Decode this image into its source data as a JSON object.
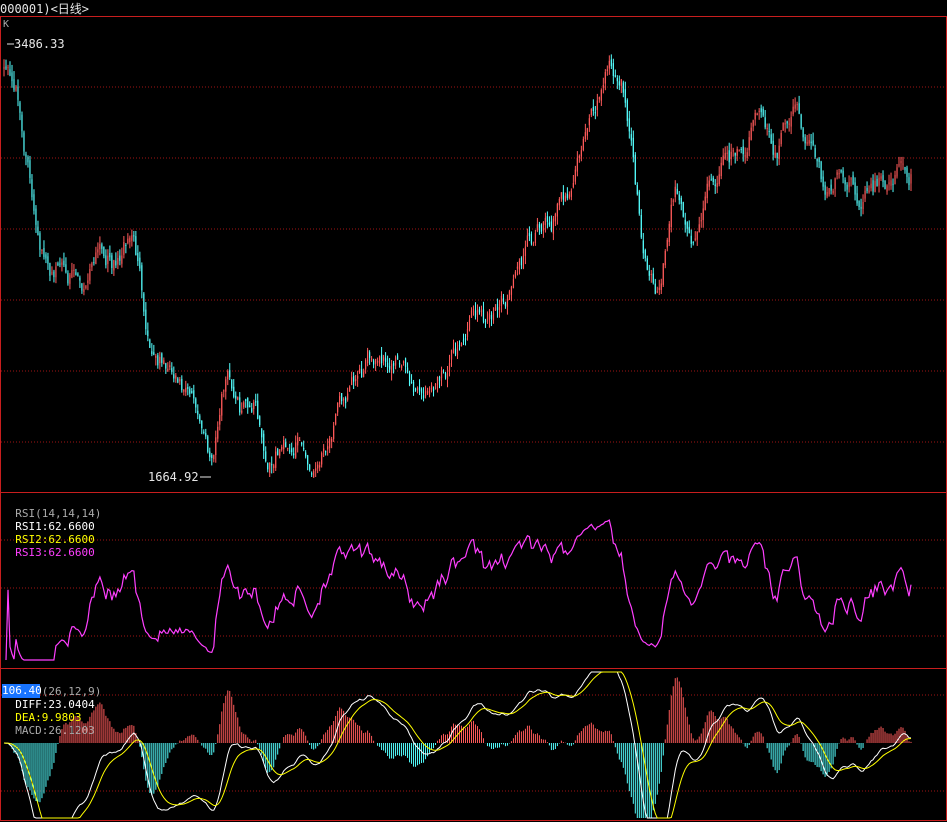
{
  "title": "000001)<日线>",
  "colors": {
    "up": "#ff5a5a",
    "down": "#54ffff",
    "frame": "#c81e1e",
    "grid": "#a01414",
    "rsi": "#ff3fff",
    "diff": "#ffffff",
    "dea": "#ffff00"
  },
  "kline": {
    "panel_label": "K",
    "high_label": "3486.33",
    "low_label": "1664.92",
    "high": 3486.33,
    "low": 1664.92
  },
  "rsi": {
    "params": "RSI(14,14,14)",
    "rsi1": "RSI1:62.6600",
    "rsi2": "RSI2:62.6600",
    "rsi3": "RSI3:62.6600"
  },
  "macd": {
    "params": "MACD(26,12,9)",
    "diff": "DIFF:23.0404",
    "dea": "DEA:9.9803",
    "macd": "MACD:26.1203",
    "scale_label": "106.40"
  },
  "chart_data": {
    "type": "candlestick",
    "series": [
      {
        "name": "K",
        "close": [
          3430,
          3330,
          2850,
          2520,
          2590,
          2420,
          2700,
          2560,
          2690,
          2250,
          2130,
          1980,
          1900,
          1750,
          2150,
          1960,
          2000,
          1750,
          1800,
          1830,
          1700,
          1870,
          1980,
          2060,
          2200,
          2150,
          2040,
          2030,
          2140,
          2250,
          2360,
          2310,
          2510,
          2640,
          2690,
          2800,
          3050,
          3200,
          3450,
          3300,
          2680,
          2480,
          2860,
          2640,
          2880,
          2980,
          3050,
          3200,
          3010,
          3200,
          3060,
          2850,
          2950,
          2880,
          2900,
          2940,
          2930
        ]
      }
    ],
    "ylim": [
      1664.92,
      3486.33
    ],
    "annotations": [
      "3486.33",
      "1664.92"
    ]
  }
}
